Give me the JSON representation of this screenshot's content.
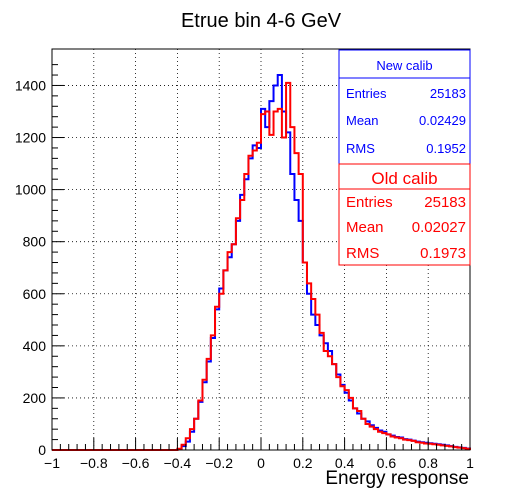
{
  "chart_data": {
    "type": "histogram",
    "title": "Etrue bin 4-6 GeV",
    "xlabel": "Energy response",
    "ylabel": "",
    "xlim": [
      -1,
      1
    ],
    "ylim": [
      0,
      1540
    ],
    "grid": true,
    "x_ticks": [
      -1,
      -0.8,
      -0.6,
      -0.4,
      -0.2,
      0,
      0.2,
      0.4,
      0.6,
      0.8,
      1
    ],
    "x_tick_labels": [
      "−1",
      "−0.8",
      "−0.6",
      "−0.4",
      "−0.2",
      "0",
      "0.2",
      "0.4",
      "0.6",
      "0.8",
      "1"
    ],
    "y_ticks": [
      0,
      200,
      400,
      600,
      800,
      1000,
      1200,
      1400
    ],
    "y_tick_labels": [
      "0",
      "200",
      "400",
      "600",
      "800",
      "1000",
      "1200",
      "1400"
    ],
    "bin_start": -1.0,
    "bin_width": 0.02,
    "series": [
      {
        "name": "New calib",
        "color": "#0000ff",
        "values": [
          0,
          0,
          0,
          0,
          0,
          0,
          0,
          0,
          0,
          0,
          0,
          0,
          0,
          0,
          0,
          0,
          0,
          0,
          0,
          0,
          0,
          0,
          0,
          0,
          0,
          0,
          0,
          0,
          0,
          0,
          3,
          15,
          32,
          70,
          120,
          185,
          260,
          340,
          430,
          540,
          620,
          690,
          740,
          790,
          880,
          980,
          1040,
          1120,
          1170,
          1160,
          1310,
          1240,
          1340,
          1400,
          1440,
          1300,
          1220,
          1060,
          960,
          880,
          720,
          600,
          520,
          480,
          440,
          410,
          380,
          330,
          290,
          250,
          220,
          190,
          160,
          140,
          120,
          110,
          95,
          85,
          75,
          70,
          60,
          55,
          50,
          48,
          42,
          40,
          36,
          32,
          30,
          28,
          26,
          24,
          22,
          20,
          18,
          15,
          12,
          10,
          8,
          6
        ]
      },
      {
        "name": "Old calib",
        "color": "#ff0000",
        "values": [
          0,
          0,
          0,
          0,
          0,
          0,
          0,
          0,
          0,
          0,
          0,
          0,
          0,
          0,
          0,
          0,
          0,
          0,
          0,
          0,
          0,
          0,
          0,
          0,
          0,
          0,
          0,
          0,
          0,
          0,
          5,
          20,
          45,
          80,
          120,
          190,
          270,
          350,
          440,
          550,
          600,
          690,
          760,
          790,
          890,
          960,
          1060,
          1130,
          1150,
          1180,
          1290,
          1300,
          1210,
          1300,
          1310,
          1200,
          1410,
          1240,
          1140,
          1060,
          720,
          640,
          580,
          520,
          450,
          380,
          360,
          330,
          280,
          245,
          230,
          200,
          160,
          150,
          120,
          100,
          90,
          80,
          70,
          65,
          60,
          52,
          48,
          45,
          40,
          38,
          35,
          30,
          28,
          25,
          24,
          22,
          20,
          18,
          16,
          14,
          11,
          9,
          7,
          5
        ]
      }
    ]
  },
  "stats_boxes": [
    {
      "title": "New calib",
      "color": "#0000ff",
      "rows": [
        {
          "label": "Entries",
          "value": "25183"
        },
        {
          "label": "Mean",
          "value": "0.02429"
        },
        {
          "label": "RMS",
          "value": "0.1952"
        }
      ]
    },
    {
      "title": "Old calib",
      "color": "#ff0000",
      "rows": [
        {
          "label": "Entries",
          "value": "25183"
        },
        {
          "label": "Mean",
          "value": "0.02027"
        },
        {
          "label": "RMS",
          "value": "0.1973"
        }
      ]
    }
  ]
}
